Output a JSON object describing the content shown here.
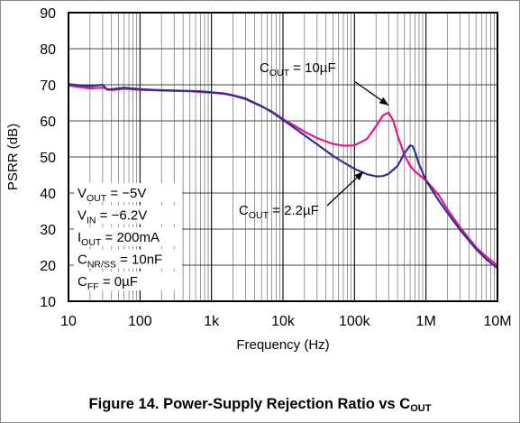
{
  "chart_data": {
    "type": "line",
    "x_scale": "log",
    "xlabel": "Frequency (Hz)",
    "ylabel": "PSRR (dB)",
    "xlim": [
      10,
      10000000
    ],
    "ylim": [
      10,
      90
    ],
    "x_ticks": [
      {
        "value": 10,
        "label": "10"
      },
      {
        "value": 100,
        "label": "100"
      },
      {
        "value": 1000,
        "label": "1k"
      },
      {
        "value": 10000,
        "label": "10k"
      },
      {
        "value": 100000,
        "label": "100k"
      },
      {
        "value": 1000000,
        "label": "1M"
      },
      {
        "value": 10000000,
        "label": "10M"
      }
    ],
    "y_ticks": [
      10,
      20,
      30,
      40,
      50,
      60,
      70,
      80,
      90
    ],
    "grid": true,
    "series": [
      {
        "name": "COUT = 10µF",
        "color": "#e6178c",
        "points": [
          [
            10,
            69.8
          ],
          [
            15,
            69.3
          ],
          [
            20,
            69.0
          ],
          [
            30,
            69.2
          ],
          [
            40,
            68.5
          ],
          [
            60,
            68.9
          ],
          [
            100,
            68.6
          ],
          [
            150,
            68.5
          ],
          [
            200,
            68.4
          ],
          [
            300,
            68.3
          ],
          [
            500,
            68.2
          ],
          [
            700,
            68.0
          ],
          [
            1000,
            67.8
          ],
          [
            1500,
            67.5
          ],
          [
            2000,
            67.0
          ],
          [
            3000,
            66.0
          ],
          [
            5000,
            64.0
          ],
          [
            7000,
            62.6
          ],
          [
            10000,
            60.5
          ],
          [
            15000,
            58.5
          ],
          [
            20000,
            57.0
          ],
          [
            30000,
            55.2
          ],
          [
            50000,
            53.6
          ],
          [
            70000,
            53.1
          ],
          [
            100000,
            53.2
          ],
          [
            150000,
            55.0
          ],
          [
            200000,
            58.5
          ],
          [
            250000,
            61.5
          ],
          [
            300000,
            62.3
          ],
          [
            350000,
            60.0
          ],
          [
            400000,
            56.0
          ],
          [
            500000,
            50.5
          ],
          [
            600000,
            47.5
          ],
          [
            700000,
            46.0
          ],
          [
            1000000,
            43.5
          ],
          [
            1500000,
            39.5
          ],
          [
            2000000,
            35.5
          ],
          [
            3000000,
            30.5
          ],
          [
            5000000,
            25.0
          ],
          [
            7000000,
            22.3
          ],
          [
            10000000,
            20.0
          ]
        ]
      },
      {
        "name": "COUT = 2.2µF",
        "color": "#2e3192",
        "points": [
          [
            10,
            70.2
          ],
          [
            15,
            69.8
          ],
          [
            20,
            69.6
          ],
          [
            30,
            70.0
          ],
          [
            35,
            68.6
          ],
          [
            40,
            68.8
          ],
          [
            60,
            69.2
          ],
          [
            100,
            68.8
          ],
          [
            150,
            68.6
          ],
          [
            200,
            68.5
          ],
          [
            300,
            68.4
          ],
          [
            500,
            68.3
          ],
          [
            700,
            68.2
          ],
          [
            1000,
            67.9
          ],
          [
            1500,
            67.6
          ],
          [
            2000,
            67.1
          ],
          [
            3000,
            66.2
          ],
          [
            5000,
            64.1
          ],
          [
            7000,
            62.4
          ],
          [
            10000,
            60.3
          ],
          [
            15000,
            57.8
          ],
          [
            20000,
            56.0
          ],
          [
            30000,
            53.5
          ],
          [
            50000,
            50.3
          ],
          [
            70000,
            48.5
          ],
          [
            100000,
            46.7
          ],
          [
            150000,
            45.2
          ],
          [
            200000,
            44.6
          ],
          [
            250000,
            44.7
          ],
          [
            300000,
            45.3
          ],
          [
            400000,
            47.5
          ],
          [
            500000,
            51.0
          ],
          [
            600000,
            53.2
          ],
          [
            650000,
            53.0
          ],
          [
            700000,
            51.5
          ],
          [
            800000,
            48.0
          ],
          [
            1000000,
            43.5
          ],
          [
            1500000,
            38.0
          ],
          [
            2000000,
            34.5
          ],
          [
            3000000,
            29.8
          ],
          [
            5000000,
            24.5
          ],
          [
            7000000,
            21.6
          ],
          [
            10000000,
            19.2
          ]
        ]
      }
    ],
    "annotations": [
      {
        "id": "ann-10uf",
        "base": "C",
        "sub": "OUT",
        "rest": " = 10µF",
        "series": 0,
        "target_x": 300000,
        "target_y": 62.3
      },
      {
        "id": "ann-2p2uf",
        "base": "C",
        "sub": "OUT",
        "rest": " = 2.2µF",
        "series": 1,
        "target_x": 100000,
        "target_y": 46.7
      }
    ],
    "conditions": [
      {
        "base": "V",
        "sub": "OUT",
        "rest": " = −5V"
      },
      {
        "base": "V",
        "sub": "IN",
        "rest": " = −6.2V"
      },
      {
        "base": "I",
        "sub": "OUT",
        "rest": " = 200mA"
      },
      {
        "base": "C",
        "sub": "NR/SS",
        "rest": " = 10nF"
      },
      {
        "base": "C",
        "sub": "FF",
        "rest": " = 0µF"
      }
    ]
  },
  "caption": {
    "text": "Figure 14. Power-Supply Rejection Ratio vs C",
    "sub": "OUT"
  }
}
